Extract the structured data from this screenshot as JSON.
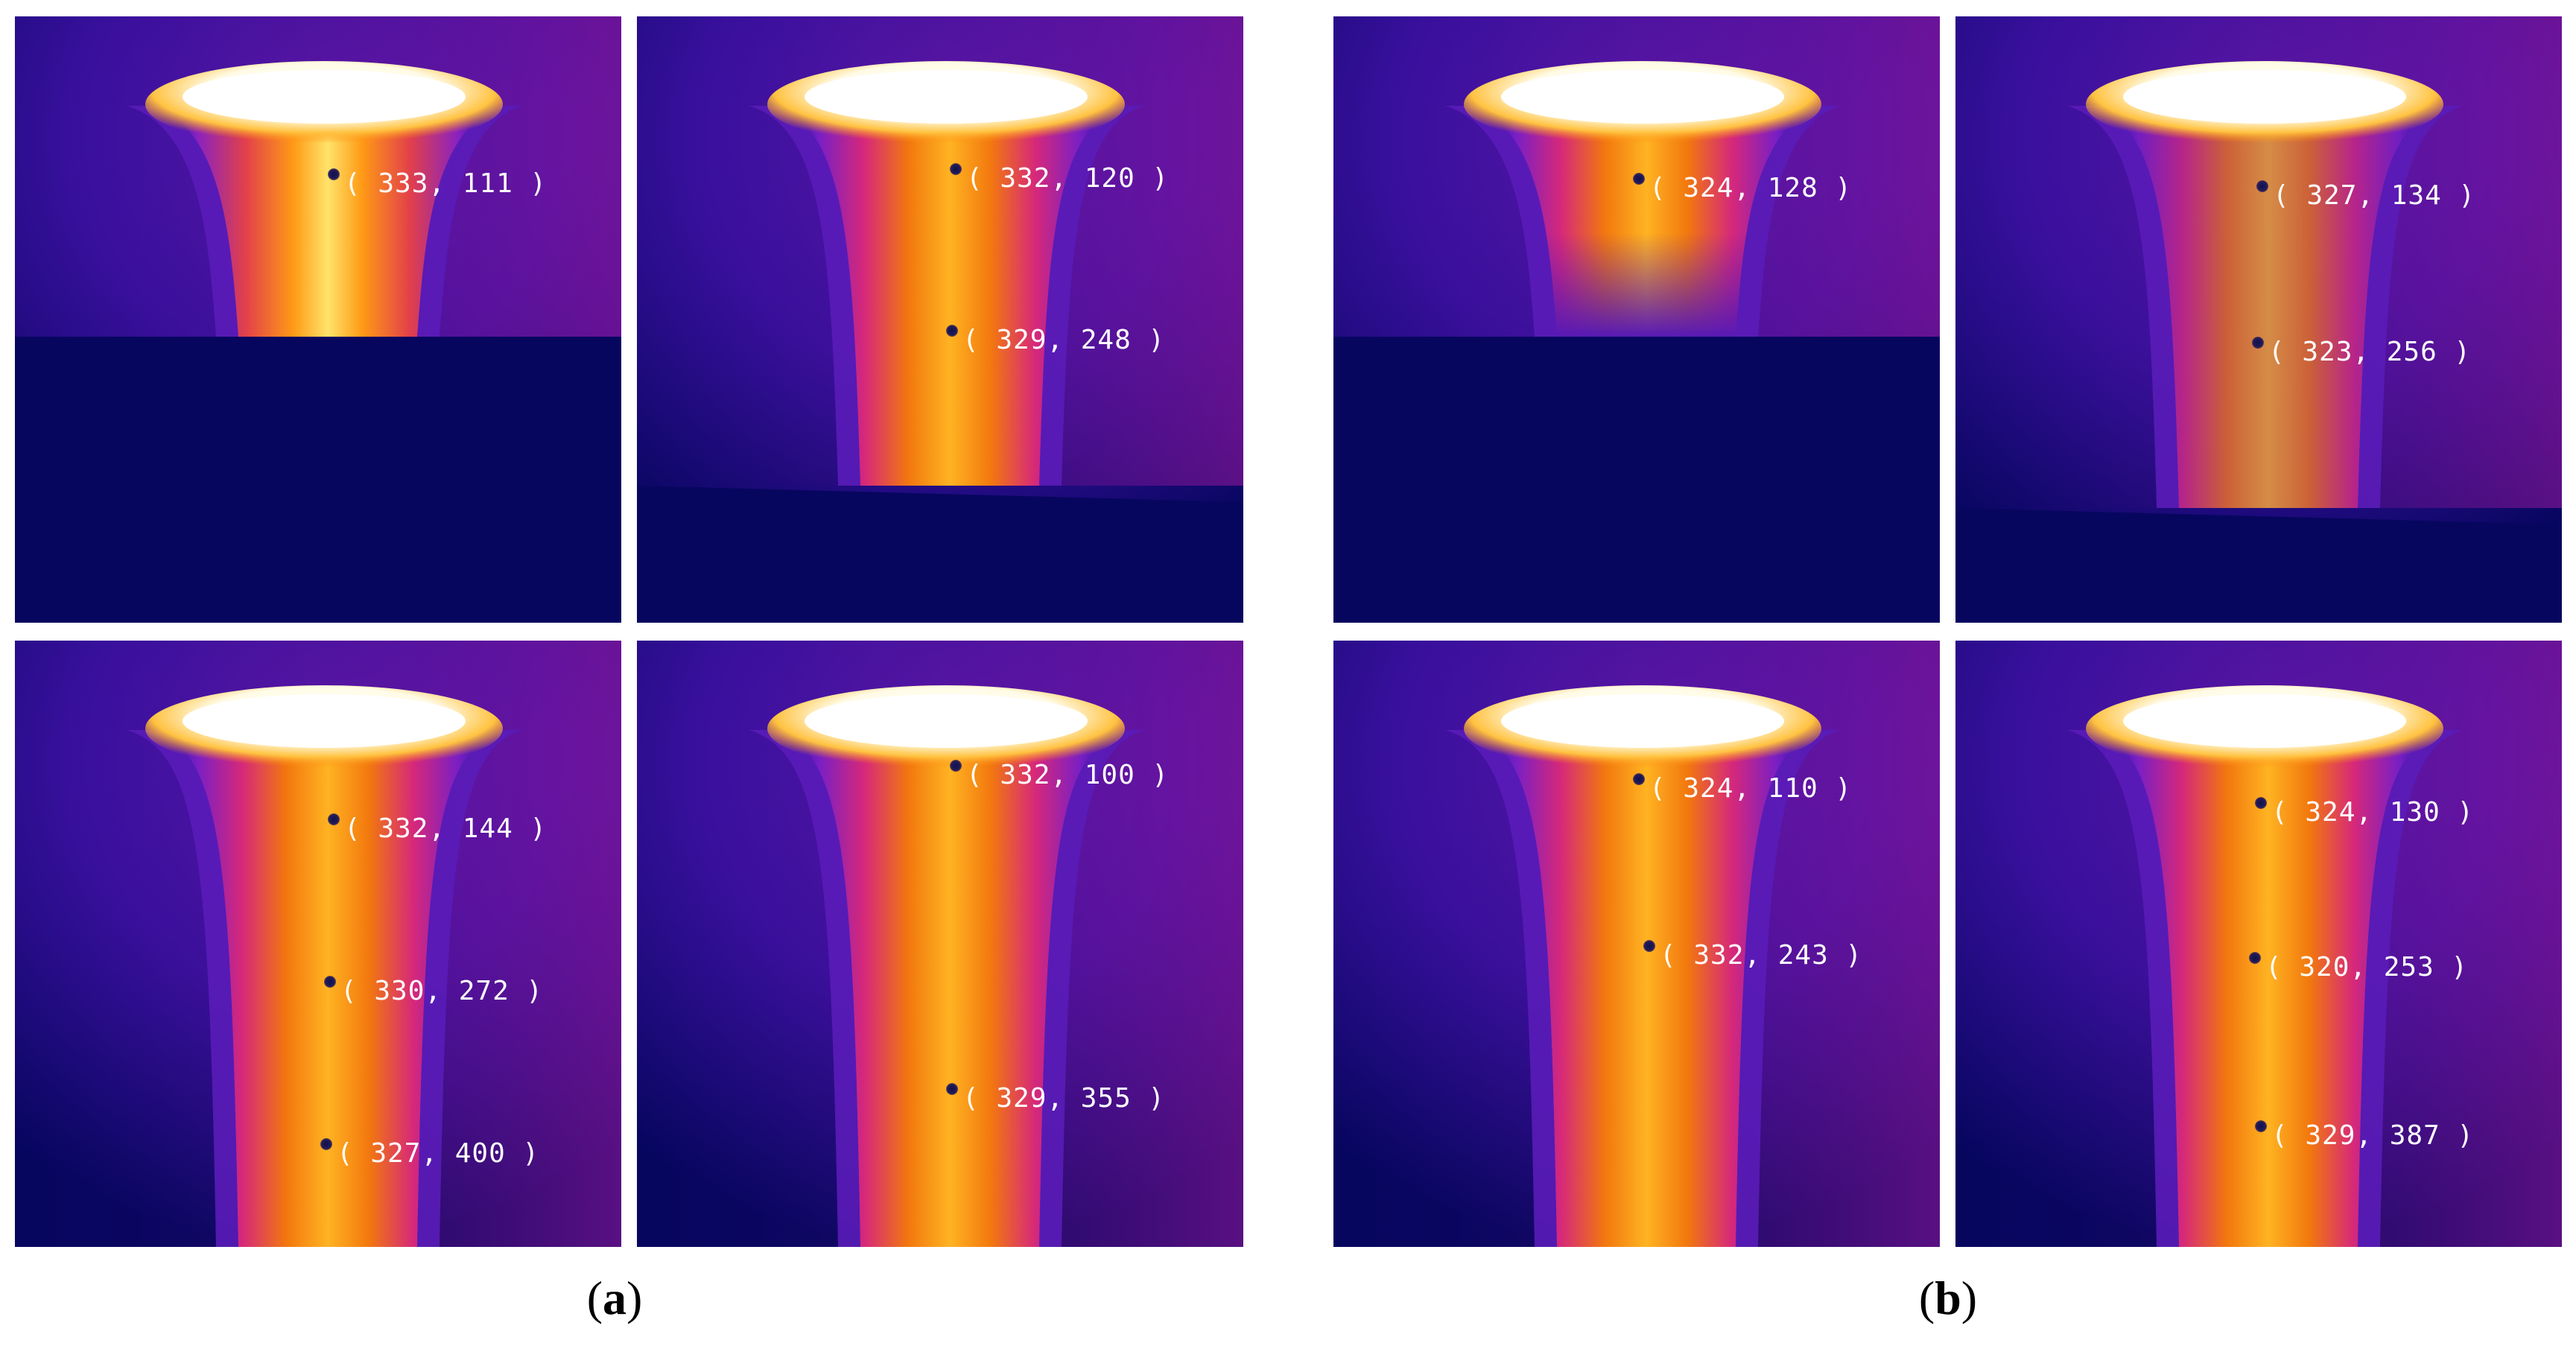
{
  "groups": [
    {
      "label_open": "(",
      "label_letter": "a",
      "label_close": ")"
    },
    {
      "label_open": "(",
      "label_letter": "b",
      "label_close": ")"
    }
  ],
  "panels": [
    {
      "name": "a-top-left",
      "points": [
        {
          "text": "( 333, 111 )"
        }
      ]
    },
    {
      "name": "a-top-right",
      "points": [
        {
          "text": "( 332, 120 )"
        },
        {
          "text": "( 329, 248 )"
        }
      ]
    },
    {
      "name": "a-bottom-left",
      "points": [
        {
          "text": "( 332, 144 )"
        },
        {
          "text": "( 330, 272 )"
        },
        {
          "text": "( 327, 400 )"
        }
      ]
    },
    {
      "name": "a-bottom-right",
      "points": [
        {
          "text": "( 332, 100 )"
        },
        {
          "text": "( 329, 355 )"
        }
      ]
    },
    {
      "name": "b-top-left",
      "points": [
        {
          "text": "( 324, 128 )"
        }
      ]
    },
    {
      "name": "b-top-right",
      "points": [
        {
          "text": "( 327, 134 )"
        },
        {
          "text": "( 323, 256 )"
        }
      ]
    },
    {
      "name": "b-bottom-left",
      "points": [
        {
          "text": "( 324, 110 )"
        },
        {
          "text": "( 332, 243 )"
        }
      ]
    },
    {
      "name": "b-bottom-right",
      "points": [
        {
          "text": "( 324, 130 )"
        },
        {
          "text": "( 320, 253 )"
        },
        {
          "text": "( 329, 387 )"
        }
      ]
    }
  ],
  "colors": {
    "background_cold": "#07065f",
    "mid_purple": "#6a1cc0",
    "magenta": "#c8198f",
    "orange": "#f5820f",
    "hot_white": "#ffffff"
  }
}
